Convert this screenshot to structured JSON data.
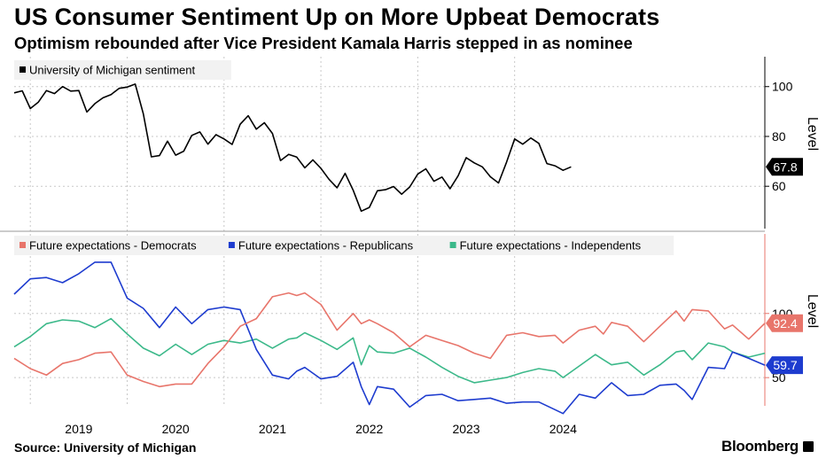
{
  "title": "US Consumer Sentiment Up on More Upbeat Democrats",
  "subtitle": "Optimism rebounded after Vice President Kamala Harris stepped in as nominee",
  "source": "Source: University of Michigan",
  "brand": "Bloomberg",
  "colors": {
    "sentiment": "#000000",
    "democrats": "#e8756b",
    "republicans": "#1e3ccf",
    "independents": "#3cb98a",
    "grid": "#c8c8c8",
    "panel2_axis": "#e8756b"
  },
  "chart_data": [
    {
      "type": "line",
      "unit_label": "Level",
      "ylim": [
        43,
        112
      ],
      "y_ticks": [
        60,
        80,
        100
      ],
      "grid": true,
      "legend_position": "top-left",
      "series": [
        {
          "name": "University of Michigan sentiment",
          "last_value_label": "67.8",
          "points": [
            [
              "2018-11",
              97.5
            ],
            [
              "2018-12",
              98.3
            ],
            [
              "2019-01",
              91.2
            ],
            [
              "2019-02",
              93.8
            ],
            [
              "2019-03",
              98.4
            ],
            [
              "2019-04",
              97.2
            ],
            [
              "2019-05",
              100.0
            ],
            [
              "2019-06",
              98.2
            ],
            [
              "2019-07",
              98.4
            ],
            [
              "2019-08",
              89.8
            ],
            [
              "2019-09",
              93.2
            ],
            [
              "2019-10",
              95.5
            ],
            [
              "2019-11",
              96.8
            ],
            [
              "2019-12",
              99.3
            ],
            [
              "2020-01",
              99.8
            ],
            [
              "2020-02",
              101.0
            ],
            [
              "2020-03",
              89.1
            ],
            [
              "2020-04",
              71.8
            ],
            [
              "2020-05",
              72.3
            ],
            [
              "2020-06",
              78.1
            ],
            [
              "2020-07",
              72.5
            ],
            [
              "2020-08",
              74.1
            ],
            [
              "2020-09",
              80.4
            ],
            [
              "2020-10",
              81.8
            ],
            [
              "2020-11",
              76.9
            ],
            [
              "2020-12",
              80.7
            ],
            [
              "2021-01",
              79.0
            ],
            [
              "2021-02",
              76.8
            ],
            [
              "2021-03",
              84.9
            ],
            [
              "2021-04",
              88.3
            ],
            [
              "2021-05",
              82.9
            ],
            [
              "2021-06",
              85.5
            ],
            [
              "2021-07",
              81.2
            ],
            [
              "2021-08",
              70.3
            ],
            [
              "2021-09",
              72.8
            ],
            [
              "2021-10",
              71.7
            ],
            [
              "2021-11",
              67.4
            ],
            [
              "2021-12",
              70.6
            ],
            [
              "2022-01",
              67.2
            ],
            [
              "2022-02",
              62.8
            ],
            [
              "2022-03",
              59.4
            ],
            [
              "2022-04",
              65.2
            ],
            [
              "2022-05",
              58.4
            ],
            [
              "2022-06",
              50.0
            ],
            [
              "2022-07",
              51.5
            ],
            [
              "2022-08",
              58.2
            ],
            [
              "2022-09",
              58.6
            ],
            [
              "2022-10",
              59.9
            ],
            [
              "2022-11",
              56.8
            ],
            [
              "2022-12",
              59.7
            ],
            [
              "2023-01",
              64.9
            ],
            [
              "2023-02",
              67.0
            ],
            [
              "2023-03",
              62.0
            ],
            [
              "2023-04",
              63.7
            ],
            [
              "2023-05",
              59.0
            ],
            [
              "2023-06",
              64.2
            ],
            [
              "2023-07",
              71.5
            ],
            [
              "2023-08",
              69.4
            ],
            [
              "2023-09",
              67.8
            ],
            [
              "2023-10",
              63.8
            ],
            [
              "2023-11",
              61.3
            ],
            [
              "2023-12",
              69.7
            ],
            [
              "2024-01",
              79.0
            ],
            [
              "2024-02",
              76.9
            ],
            [
              "2024-03",
              79.4
            ],
            [
              "2024-04",
              77.2
            ],
            [
              "2024-05",
              69.1
            ],
            [
              "2024-06",
              68.2
            ],
            [
              "2024-07",
              66.4
            ],
            [
              "2024-08",
              67.8
            ]
          ]
        }
      ]
    },
    {
      "type": "line",
      "unit_label": "Level",
      "ylim": [
        28,
        162
      ],
      "y_ticks": [
        50,
        100
      ],
      "grid": true,
      "legend_position": "top-left",
      "series": [
        {
          "name": "Future expectations - Democrats",
          "last_value_label": "92.4",
          "points": [
            [
              "2018-11",
              65
            ],
            [
              "2019-01",
              57
            ],
            [
              "2019-03",
              52
            ],
            [
              "2019-05",
              61
            ],
            [
              "2019-07",
              64
            ],
            [
              "2019-09",
              69
            ],
            [
              "2019-11",
              70
            ],
            [
              "2020-01",
              52
            ],
            [
              "2020-03",
              47
            ],
            [
              "2020-05",
              43
            ],
            [
              "2020-07",
              45
            ],
            [
              "2020-09",
              45
            ],
            [
              "2020-11",
              61
            ],
            [
              "2021-01",
              74
            ],
            [
              "2021-03",
              90
            ],
            [
              "2021-05",
              96
            ],
            [
              "2021-07",
              113
            ],
            [
              "2021-09",
              116
            ],
            [
              "2021-10",
              114
            ],
            [
              "2021-11",
              116
            ],
            [
              "2022-01",
              107
            ],
            [
              "2022-03",
              87
            ],
            [
              "2022-05",
              100
            ],
            [
              "2022-06",
              92
            ],
            [
              "2022-07",
              95
            ],
            [
              "2022-08",
              92
            ],
            [
              "2022-10",
              85
            ],
            [
              "2022-12",
              74
            ],
            [
              "2023-02",
              83
            ],
            [
              "2023-04",
              79
            ],
            [
              "2023-06",
              75
            ],
            [
              "2023-08",
              69
            ],
            [
              "2023-10",
              65
            ],
            [
              "2023-12",
              83
            ],
            [
              "2024-02",
              85
            ],
            [
              "2024-04",
              82
            ],
            [
              "2024-06",
              83
            ],
            [
              "2024-07",
              77
            ],
            [
              "2024-09",
              87
            ],
            [
              "2024-11",
              90
            ],
            [
              "2024-12",
              84
            ],
            [
              "2025-01",
              93
            ],
            [
              "2025-03",
              90
            ],
            [
              "2025-05",
              78
            ],
            [
              "2025-07",
              90
            ],
            [
              "2025-09",
              102
            ],
            [
              "2025-10",
              94
            ],
            [
              "2025-11",
              103
            ],
            [
              "2026-01",
              102
            ],
            [
              "2026-03",
              88
            ],
            [
              "2026-04",
              91
            ],
            [
              "2026-06",
              80
            ],
            [
              "2026-08",
              92.4
            ]
          ]
        },
        {
          "name": "Future expectations - Republicans",
          "last_value_label": "59.7",
          "points": [
            [
              "2018-11",
              115
            ],
            [
              "2019-01",
              127
            ],
            [
              "2019-03",
              128
            ],
            [
              "2019-05",
              124
            ],
            [
              "2019-07",
              131
            ],
            [
              "2019-09",
              140
            ],
            [
              "2019-11",
              140
            ],
            [
              "2020-01",
              112
            ],
            [
              "2020-03",
              104
            ],
            [
              "2020-05",
              89
            ],
            [
              "2020-07",
              105
            ],
            [
              "2020-09",
              92
            ],
            [
              "2020-11",
              103
            ],
            [
              "2021-01",
              105
            ],
            [
              "2021-03",
              103
            ],
            [
              "2021-05",
              72
            ],
            [
              "2021-07",
              52
            ],
            [
              "2021-09",
              49
            ],
            [
              "2021-10",
              55
            ],
            [
              "2021-11",
              58
            ],
            [
              "2022-01",
              49
            ],
            [
              "2022-03",
              51
            ],
            [
              "2022-05",
              62
            ],
            [
              "2022-06",
              43
            ],
            [
              "2022-07",
              29
            ],
            [
              "2022-08",
              43
            ],
            [
              "2022-10",
              41
            ],
            [
              "2022-12",
              27
            ],
            [
              "2023-02",
              36
            ],
            [
              "2023-04",
              37
            ],
            [
              "2023-06",
              32
            ],
            [
              "2023-08",
              33
            ],
            [
              "2023-10",
              34
            ],
            [
              "2023-12",
              30
            ],
            [
              "2024-02",
              31
            ],
            [
              "2024-04",
              31
            ],
            [
              "2024-06",
              25
            ],
            [
              "2024-07",
              22
            ],
            [
              "2024-09",
              37
            ],
            [
              "2024-11",
              34
            ],
            [
              "2024-12",
              40
            ],
            [
              "2025-01",
              46
            ],
            [
              "2025-03",
              36
            ],
            [
              "2025-05",
              37
            ],
            [
              "2025-07",
              44
            ],
            [
              "2025-09",
              45
            ],
            [
              "2025-10",
              40
            ],
            [
              "2025-11",
              33
            ],
            [
              "2026-01",
              58
            ],
            [
              "2026-03",
              57
            ],
            [
              "2026-04",
              70
            ],
            [
              "2026-06",
              65
            ],
            [
              "2026-08",
              59.7
            ]
          ]
        },
        {
          "name": "Future expectations - Independents",
          "last_value_label": "",
          "points": [
            [
              "2018-11",
              74
            ],
            [
              "2019-01",
              82
            ],
            [
              "2019-03",
              92
            ],
            [
              "2019-05",
              95
            ],
            [
              "2019-07",
              94
            ],
            [
              "2019-09",
              89
            ],
            [
              "2019-11",
              96
            ],
            [
              "2020-01",
              84
            ],
            [
              "2020-03",
              73
            ],
            [
              "2020-05",
              67
            ],
            [
              "2020-07",
              76
            ],
            [
              "2020-09",
              68
            ],
            [
              "2020-11",
              76
            ],
            [
              "2021-01",
              79
            ],
            [
              "2021-03",
              77
            ],
            [
              "2021-05",
              80
            ],
            [
              "2021-07",
              73
            ],
            [
              "2021-09",
              80
            ],
            [
              "2021-10",
              81
            ],
            [
              "2021-11",
              85
            ],
            [
              "2022-01",
              79
            ],
            [
              "2022-03",
              72
            ],
            [
              "2022-05",
              81
            ],
            [
              "2022-06",
              60
            ],
            [
              "2022-07",
              75
            ],
            [
              "2022-08",
              70
            ],
            [
              "2022-10",
              69
            ],
            [
              "2022-12",
              73
            ],
            [
              "2023-02",
              66
            ],
            [
              "2023-04",
              58
            ],
            [
              "2023-06",
              51
            ],
            [
              "2023-08",
              46
            ],
            [
              "2023-10",
              48
            ],
            [
              "2023-12",
              50
            ],
            [
              "2024-02",
              54
            ],
            [
              "2024-04",
              57
            ],
            [
              "2024-06",
              55
            ],
            [
              "2024-07",
              50
            ],
            [
              "2024-09",
              59
            ],
            [
              "2024-11",
              68
            ],
            [
              "2024-12",
              64
            ],
            [
              "2025-01",
              60
            ],
            [
              "2025-03",
              62
            ],
            [
              "2025-05",
              52
            ],
            [
              "2025-07",
              60
            ],
            [
              "2025-09",
              70
            ],
            [
              "2025-10",
              71
            ],
            [
              "2025-11",
              64
            ],
            [
              "2026-01",
              77
            ],
            [
              "2026-03",
              74
            ],
            [
              "2026-04",
              70
            ],
            [
              "2026-06",
              66
            ],
            [
              "2026-08",
              69
            ]
          ]
        }
      ]
    }
  ],
  "x_axis": {
    "ticks": [
      {
        "label": "2019",
        "x": "2019-07"
      },
      {
        "label": "2020",
        "x": "2020-07"
      },
      {
        "label": "2021",
        "x": "2021-07"
      },
      {
        "label": "2022",
        "x": "2022-07"
      },
      {
        "label": "2023",
        "x": "2023-07"
      },
      {
        "label": "2024",
        "x": "2024-07"
      }
    ],
    "xlim": [
      "2018-11",
      "2026-08"
    ]
  }
}
